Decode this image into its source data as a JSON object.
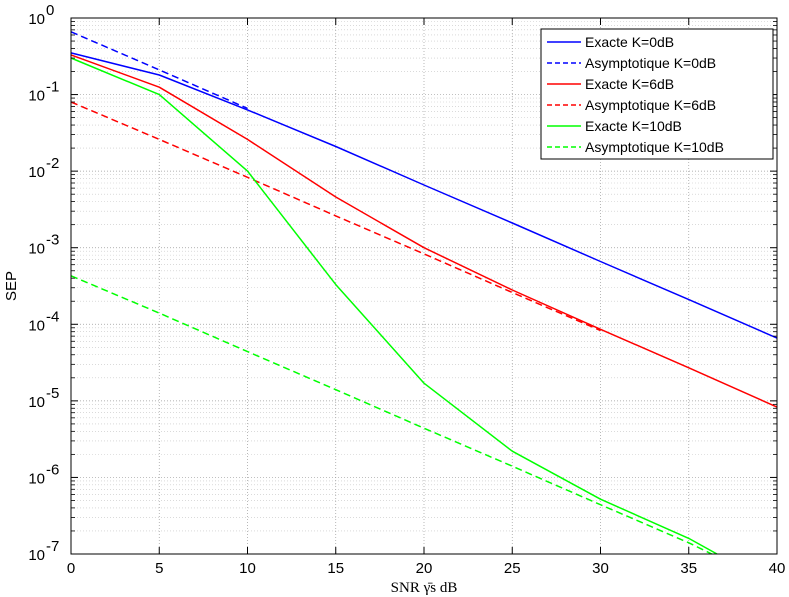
{
  "chart_data": {
    "type": "line",
    "title": "",
    "xlabel": "SNR γ̄s dB",
    "ylabel": "SEP",
    "y_scale": "log",
    "xlim": [
      0,
      40
    ],
    "ylim": [
      1e-07,
      1
    ],
    "grid": true,
    "minor_grid": true,
    "legend_position": "top-right",
    "x_ticks": [
      0,
      5,
      10,
      15,
      20,
      25,
      30,
      35,
      40
    ],
    "x_tick_labels": [
      "0",
      "5",
      "10",
      "15",
      "20",
      "25",
      "30",
      "35",
      "40"
    ],
    "y_ticks": [
      1e-07,
      1e-06,
      1e-05,
      0.0001,
      0.001,
      0.01,
      0.1,
      1
    ],
    "y_tick_labels": [
      {
        "base": "10",
        "exp": "-7"
      },
      {
        "base": "10",
        "exp": "-6"
      },
      {
        "base": "10",
        "exp": "-5"
      },
      {
        "base": "10",
        "exp": "-4"
      },
      {
        "base": "10",
        "exp": "-3"
      },
      {
        "base": "10",
        "exp": "-2"
      },
      {
        "base": "10",
        "exp": "-1"
      },
      {
        "base": "10",
        "exp": "0"
      }
    ],
    "series": [
      {
        "name": "Exacte K=0dB",
        "color": "#0000ff",
        "dash": "solid",
        "x": [
          0,
          5,
          10,
          15,
          20,
          25,
          30,
          35,
          40
        ],
        "y": [
          0.35,
          0.18,
          0.063,
          0.021,
          0.0066,
          0.0021,
          0.00066,
          0.00021,
          6.6e-05
        ]
      },
      {
        "name": "Asymptotique K=0dB",
        "color": "#0000ff",
        "dash": "dashed",
        "x": [
          0,
          5,
          10
        ],
        "y": [
          0.66,
          0.21,
          0.066
        ]
      },
      {
        "name": "Exacte K=6dB",
        "color": "#ff0000",
        "dash": "solid",
        "x": [
          0,
          5,
          10,
          15,
          20,
          25,
          30,
          35,
          40
        ],
        "y": [
          0.33,
          0.125,
          0.026,
          0.0046,
          0.001,
          0.00028,
          8.6e-05,
          2.7e-05,
          8.3e-06
        ]
      },
      {
        "name": "Asymptotique K=6dB",
        "color": "#ff0000",
        "dash": "dashed",
        "x": [
          0,
          5,
          10,
          15,
          20,
          25,
          30
        ],
        "y": [
          0.08,
          0.026,
          0.0083,
          0.0026,
          0.00083,
          0.00026,
          8.3e-05
        ]
      },
      {
        "name": "Exacte K=10dB",
        "color": "#00ff00",
        "dash": "solid",
        "x": [
          0,
          5,
          10,
          15,
          20,
          25,
          30,
          35,
          36.6
        ],
        "y": [
          0.3,
          0.1,
          0.01,
          0.00033,
          1.7e-05,
          2.2e-06,
          5.2e-07,
          1.6e-07,
          1e-07
        ]
      },
      {
        "name": "Asymptotique K=10dB",
        "color": "#00ff00",
        "dash": "dashed",
        "x": [
          0,
          5,
          10,
          15,
          20,
          25,
          30,
          35,
          36.3
        ],
        "y": [
          0.00043,
          0.00014,
          4.4e-05,
          1.4e-05,
          4.4e-06,
          1.4e-06,
          4.4e-07,
          1.4e-07,
          1e-07
        ]
      }
    ]
  }
}
